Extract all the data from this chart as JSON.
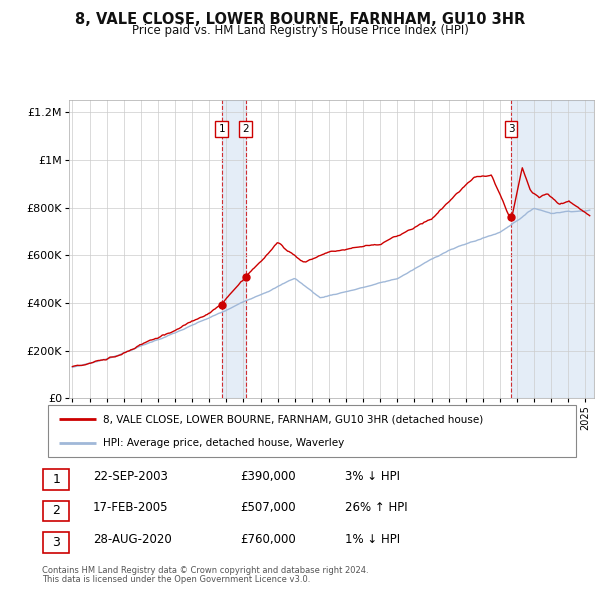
{
  "title": "8, VALE CLOSE, LOWER BOURNE, FARNHAM, GU10 3HR",
  "subtitle": "Price paid vs. HM Land Registry's House Price Index (HPI)",
  "background_color": "#ffffff",
  "plot_bg_color": "#ffffff",
  "grid_color": "#cccccc",
  "hpi_color": "#a0b8d8",
  "price_color": "#cc0000",
  "sale_dot_color": "#cc0000",
  "sale1_year": 2003.727,
  "sale1_price": 390000,
  "sale1_label": "1",
  "sale1_date": "22-SEP-2003",
  "sale1_hpi_pct": "3% ↓ HPI",
  "sale2_year": 2005.125,
  "sale2_price": 507000,
  "sale2_label": "2",
  "sale2_date": "17-FEB-2005",
  "sale2_hpi_pct": "26% ↑ HPI",
  "sale3_year": 2020.66,
  "sale3_price": 760000,
  "sale3_label": "3",
  "sale3_date": "28-AUG-2020",
  "sale3_hpi_pct": "1% ↓ HPI",
  "ylim": [
    0,
    1250000
  ],
  "xlim_start": 1994.8,
  "xlim_end": 2025.5,
  "yticks": [
    0,
    200000,
    400000,
    600000,
    800000,
    1000000,
    1200000
  ],
  "ytick_labels": [
    "£0",
    "£200K",
    "£400K",
    "£600K",
    "£800K",
    "£1M",
    "£1.2M"
  ],
  "xticks": [
    1995,
    1996,
    1997,
    1998,
    1999,
    2000,
    2001,
    2002,
    2003,
    2004,
    2005,
    2006,
    2007,
    2008,
    2009,
    2010,
    2011,
    2012,
    2013,
    2014,
    2015,
    2016,
    2017,
    2018,
    2019,
    2020,
    2021,
    2022,
    2023,
    2024,
    2025
  ],
  "legend_line1": "8, VALE CLOSE, LOWER BOURNE, FARNHAM, GU10 3HR (detached house)",
  "legend_line2": "HPI: Average price, detached house, Waverley",
  "footer1": "Contains HM Land Registry data © Crown copyright and database right 2024.",
  "footer2": "This data is licensed under the Open Government Licence v3.0."
}
